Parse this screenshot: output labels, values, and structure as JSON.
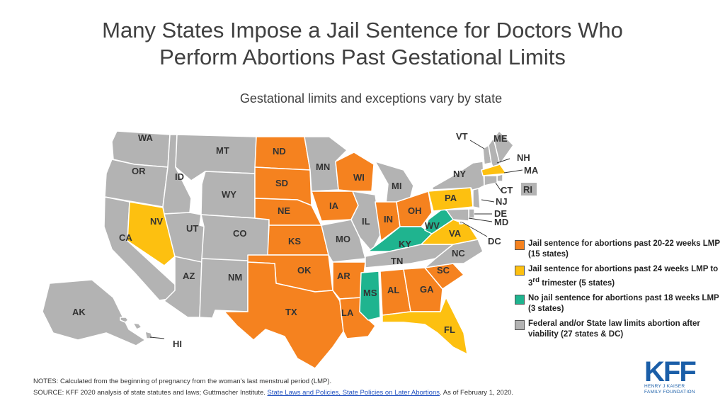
{
  "title_line1": "Many States Impose a Jail Sentence for Doctors Who",
  "title_line2": "Perform Abortions Past Gestational Limits",
  "subtitle": "Gestational limits and exceptions vary by state",
  "colors": {
    "orange": "#f5821f",
    "yellow": "#fdc010",
    "green": "#1fb48f",
    "gray": "#b3b3b3",
    "border": "#ffffff"
  },
  "legend": [
    {
      "key": "orange",
      "text": "Jail sentence for abortions past 20-22 weeks LMP (15 states)"
    },
    {
      "key": "yellow",
      "text_pre": "Jail sentence for abortions past 24 weeks LMP to 3",
      "text_sup": "rd",
      "text_post": " trimester (5 states)"
    },
    {
      "key": "green",
      "text": "No jail sentence for abortions past 18 weeks LMP (3 states)"
    },
    {
      "key": "gray",
      "text": "Federal and/or State law limits abortion after viability (27 states & DC)"
    }
  ],
  "states": {
    "WA": "gray",
    "OR": "gray",
    "CA": "gray",
    "NV": "yellow",
    "ID": "gray",
    "MT": "gray",
    "WY": "gray",
    "UT": "gray",
    "CO": "gray",
    "AZ": "gray",
    "NM": "gray",
    "ND": "orange",
    "SD": "orange",
    "NE": "orange",
    "KS": "orange",
    "OK": "orange",
    "TX": "orange",
    "MN": "gray",
    "IA": "orange",
    "MO": "gray",
    "AR": "orange",
    "LA": "orange",
    "WI": "orange",
    "IL": "gray",
    "MI": "gray",
    "IN": "orange",
    "OH": "orange",
    "KY": "green",
    "TN": "gray",
    "MS": "green",
    "AL": "orange",
    "GA": "orange",
    "FL": "yellow",
    "SC": "orange",
    "NC": "gray",
    "VA": "yellow",
    "WV": "green",
    "PA": "yellow",
    "NY": "gray",
    "VT": "gray",
    "NH": "gray",
    "ME": "gray",
    "MA": "yellow",
    "RI": "gray",
    "CT": "gray",
    "NJ": "gray",
    "DE": "gray",
    "MD": "gray",
    "DC": "gray",
    "AK": "gray",
    "HI": "gray"
  },
  "labels": [
    "WA",
    "OR",
    "CA",
    "NV",
    "ID",
    "MT",
    "WY",
    "UT",
    "CO",
    "AZ",
    "NM",
    "ND",
    "SD",
    "NE",
    "KS",
    "OK",
    "TX",
    "MN",
    "IA",
    "MO",
    "AR",
    "LA",
    "WI",
    "IL",
    "MI",
    "IN",
    "OH",
    "KY",
    "TN",
    "MS",
    "AL",
    "GA",
    "FL",
    "SC",
    "NC",
    "VA",
    "WV",
    "PA",
    "NY",
    "VT",
    "NH",
    "ME",
    "MA",
    "RI",
    "CT",
    "NJ",
    "DE",
    "MD",
    "DC",
    "AK",
    "HI"
  ],
  "notes": "NOTES: Calculated from the beginning of pregnancy from the woman’s last menstrual period (LMP).",
  "source_pre": "SOURCE: KFF 2020 analysis of state statutes and laws; Guttmacher Institute. ",
  "source_link": "State Laws and Policies, State Policies on Later Abortions",
  "source_post": ". As of February 1, 2020.",
  "logo_text": "KFF",
  "logo_sub1": "HENRY J KAISER",
  "logo_sub2": "FAMILY FOUNDATION"
}
